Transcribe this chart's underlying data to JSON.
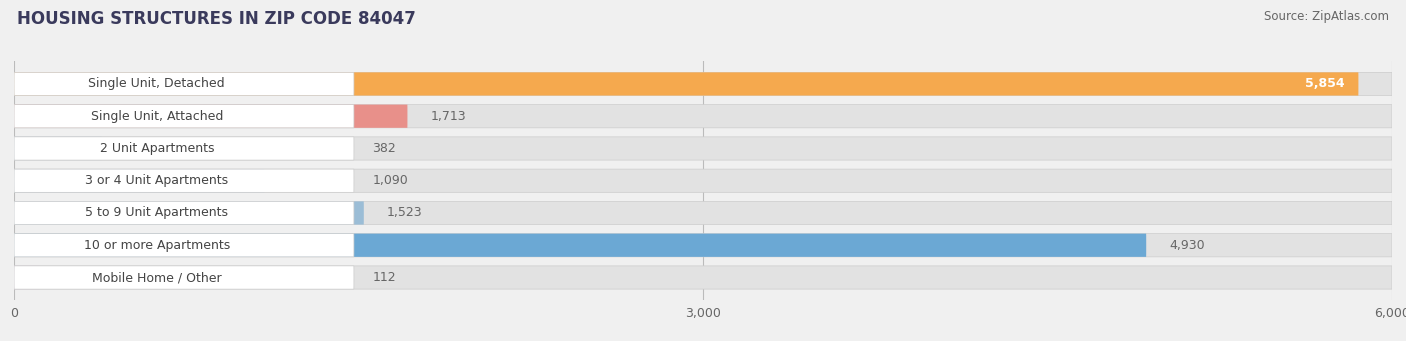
{
  "title": "HOUSING STRUCTURES IN ZIP CODE 84047",
  "source": "Source: ZipAtlas.com",
  "categories": [
    "Single Unit, Detached",
    "Single Unit, Attached",
    "2 Unit Apartments",
    "3 or 4 Unit Apartments",
    "5 to 9 Unit Apartments",
    "10 or more Apartments",
    "Mobile Home / Other"
  ],
  "values": [
    5854,
    1713,
    382,
    1090,
    1523,
    4930,
    112
  ],
  "bar_colors": [
    "#F5A94E",
    "#E8908A",
    "#9BBDD6",
    "#9BBDD6",
    "#9BBDD6",
    "#6BA8D4",
    "#C9A8D4"
  ],
  "xlim": [
    0,
    6000
  ],
  "xticks": [
    0,
    3000,
    6000
  ],
  "bg_color": "#f0f0f0",
  "bar_bg_color": "#e2e2e2",
  "label_bg_color": "#ffffff",
  "title_color": "#3a3a5c",
  "source_color": "#666666",
  "label_text_color": "#444444",
  "value_text_color": "#666666",
  "value_text_color_inside": "#ffffff",
  "title_fontsize": 12,
  "source_fontsize": 8.5,
  "label_fontsize": 9,
  "value_fontsize": 9
}
